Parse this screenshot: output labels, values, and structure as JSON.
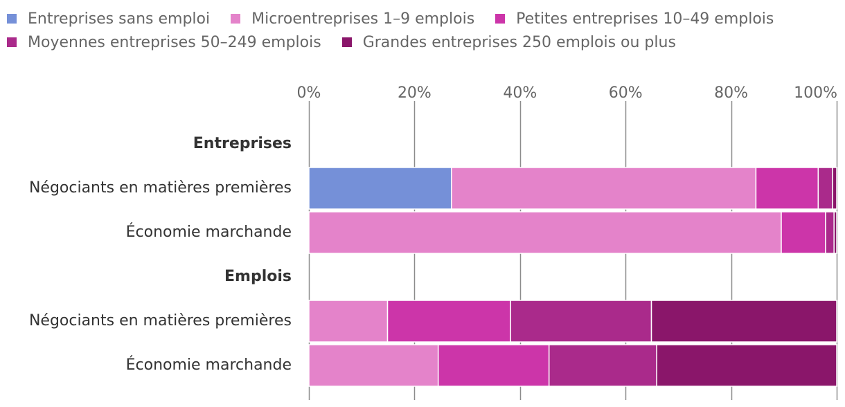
{
  "chart_data": {
    "type": "bar",
    "orientation": "horizontal",
    "stacked": true,
    "title": "",
    "xlabel": "",
    "ylabel": "",
    "xlim": [
      0,
      100
    ],
    "x_tick_labels": [
      "0%",
      "20%",
      "40%",
      "60%",
      "80%",
      "100%"
    ],
    "x_tick_values": [
      0,
      20,
      40,
      60,
      80,
      100
    ],
    "grid": true,
    "legend_position": "top-left",
    "series": [
      {
        "name": "Entreprises sans emploi",
        "color": "#7590d8"
      },
      {
        "name": "Microentreprises 1–9 emplois",
        "color": "#e483ca"
      },
      {
        "name": "Petites entreprises 10–49 emplois",
        "color": "#cc35a9"
      },
      {
        "name": "Moyennes entreprises 50–249 emplois",
        "color": "#aa2a8b"
      },
      {
        "name": "Grandes entreprises 250 emplois ou plus",
        "color": "#8a166a"
      }
    ],
    "groups": [
      {
        "label": "Entreprises",
        "rows": [
          {
            "label": "Négociants en matières premières",
            "values": [
              27.0,
              57.7,
              11.8,
              2.7,
              0.8
            ]
          },
          {
            "label": "Économie marchande",
            "values": [
              0.0,
              89.5,
              8.4,
              1.6,
              0.5
            ]
          }
        ]
      },
      {
        "label": "Emplois",
        "rows": [
          {
            "label": "Négociants en matières premières",
            "values": [
              0.0,
              14.9,
              23.3,
              26.7,
              35.1
            ]
          },
          {
            "label": "Économie marchande",
            "values": [
              0.0,
              24.5,
              21.0,
              20.4,
              34.1
            ]
          }
        ]
      }
    ]
  }
}
